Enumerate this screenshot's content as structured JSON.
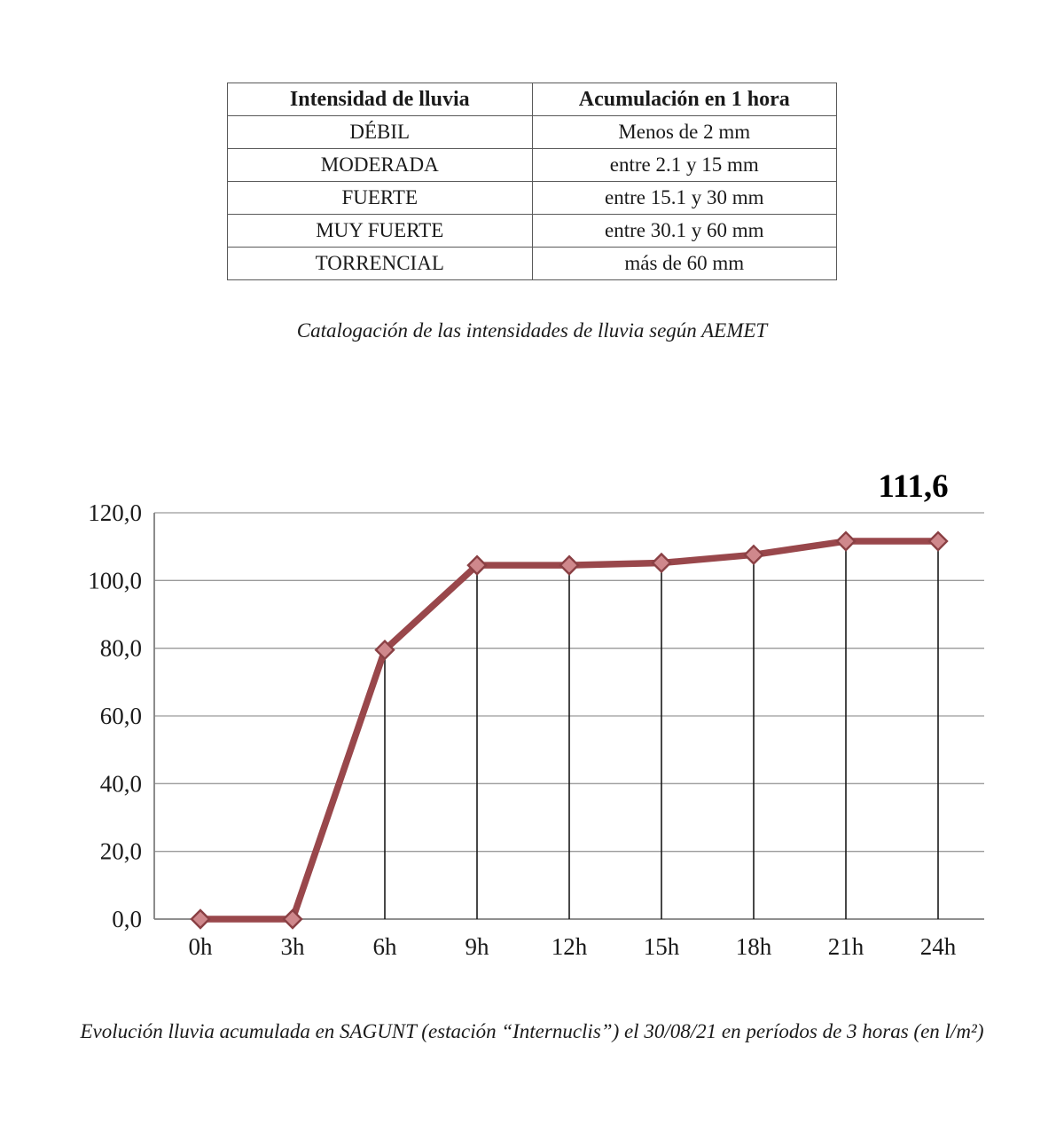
{
  "table": {
    "headers": [
      "Intensidad de lluvia",
      "Acumulación en 1 hora"
    ],
    "rows": [
      [
        "DÉBIL",
        "Menos de 2 mm"
      ],
      [
        "MODERADA",
        "entre 2.1 y 15 mm"
      ],
      [
        "FUERTE",
        "entre 15.1 y 30 mm"
      ],
      [
        "MUY FUERTE",
        "entre 30.1 y 60 mm"
      ],
      [
        "TORRENCIAL",
        "más de 60 mm"
      ]
    ]
  },
  "captions": {
    "table_caption": "Catalogación de las intensidades de lluvia según AEMET",
    "chart_caption": "Evolución lluvia acumulada en SAGUNT (estación “Internuclis”) el 30/08/21 en períodos de 3 horas (en l/m²)"
  },
  "chart_data": {
    "type": "line",
    "title": "",
    "categories": [
      "0h",
      "3h",
      "6h",
      "9h",
      "12h",
      "15h",
      "18h",
      "21h",
      "24h"
    ],
    "values": [
      0,
      0,
      79.5,
      104.5,
      104.5,
      105.2,
      107.6,
      111.6,
      111.6
    ],
    "annotation": "111,6",
    "xlabel": "",
    "ylabel": "",
    "ylim": [
      0,
      120
    ],
    "ytick_step": 20,
    "ytick_labels": [
      "0,0",
      "20,0",
      "40,0",
      "60,0",
      "80,0",
      "100,0",
      "120,0"
    ],
    "grid": "horizontal",
    "drop_lines": true,
    "legend": "none",
    "line_color": "#99474b",
    "marker_fill": "#cf888c",
    "marker_stroke": "#8a4044",
    "grid_color": "#9a9a9a",
    "axis_color": "#7f7f7f",
    "drop_line_color": "#1a1a1a",
    "label_color": "#1a1a1a"
  }
}
